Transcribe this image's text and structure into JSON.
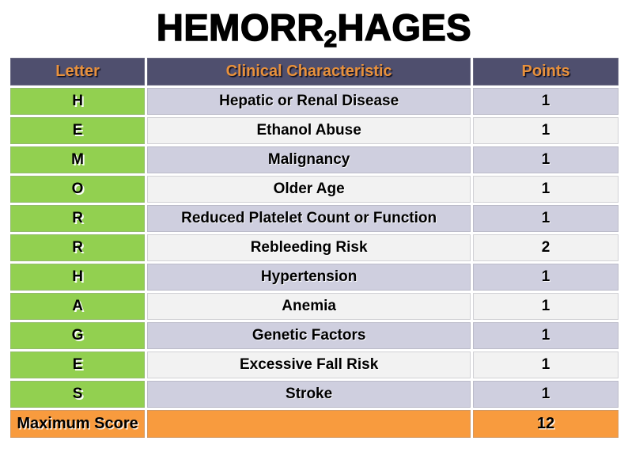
{
  "title": {
    "part1": "HEMORR",
    "subscript": "2",
    "part2": "HAGES"
  },
  "table": {
    "headers": {
      "letter": "Letter",
      "characteristic": "Clinical Characteristic",
      "points": "Points"
    },
    "rows": [
      {
        "letter": "H",
        "characteristic": "Hepatic or Renal Disease",
        "points": "1"
      },
      {
        "letter": "E",
        "characteristic": "Ethanol Abuse",
        "points": "1"
      },
      {
        "letter": "M",
        "characteristic": "Malignancy",
        "points": "1"
      },
      {
        "letter": "O",
        "characteristic": "Older Age",
        "points": "1"
      },
      {
        "letter": "R",
        "characteristic": "Reduced Platelet Count or Function",
        "points": "1"
      },
      {
        "letter": "R",
        "characteristic": "Rebleeding Risk",
        "points": "2"
      },
      {
        "letter": "H",
        "characteristic": "Hypertension",
        "points": "1"
      },
      {
        "letter": "A",
        "characteristic": "Anemia",
        "points": "1"
      },
      {
        "letter": "G",
        "characteristic": "Genetic Factors",
        "points": "1"
      },
      {
        "letter": "E",
        "characteristic": "Excessive Fall Risk",
        "points": "1"
      },
      {
        "letter": "S",
        "characteristic": "Stroke",
        "points": "1"
      }
    ],
    "footer": {
      "label": "Maximum Score",
      "characteristic": "",
      "points": "12"
    }
  },
  "colors": {
    "header_bg": "#4F4F6E",
    "header_text": "#E8913C",
    "letter_bg": "#92D050",
    "row_alt1": "#CFCFDF",
    "row_alt2": "#F2F2F2",
    "footer_bg": "#F89B3E"
  }
}
